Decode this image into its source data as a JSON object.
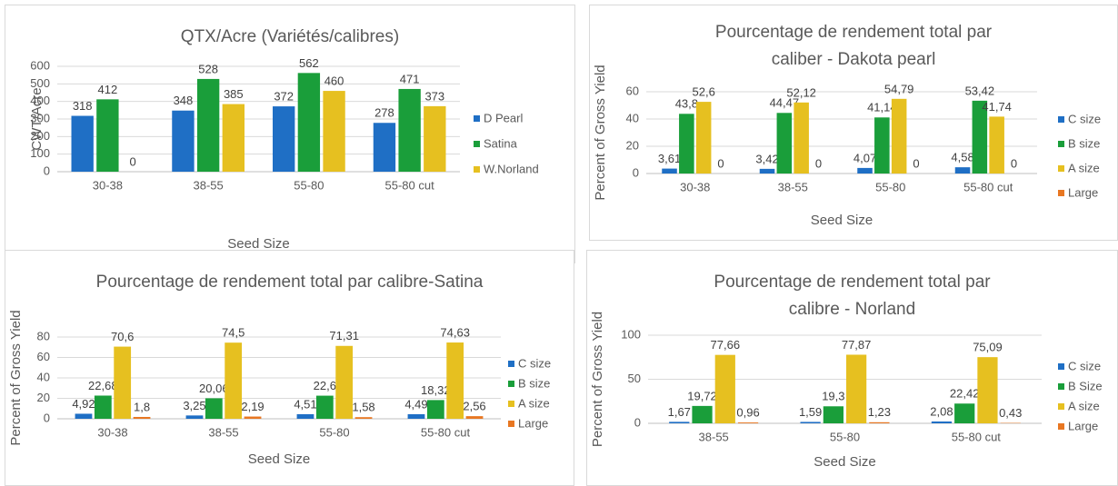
{
  "chart_data": [
    {
      "type": "bar",
      "title": "QTX/Acre (Variétés/calibres)",
      "x_label": "Seed Size",
      "y_label": "CWT/Acre",
      "categories": [
        "30-38",
        "38-55",
        "55-80",
        "55-80 cut"
      ],
      "series": [
        {
          "name": "D Pearl",
          "color": "#1f6fc5",
          "values": [
            318,
            348,
            372,
            278
          ]
        },
        {
          "name": "Satina",
          "color": "#1a9e3a",
          "values": [
            412,
            528,
            562,
            471
          ]
        },
        {
          "name": "W.Norland",
          "color": "#e6c020",
          "values": [
            0,
            385,
            460,
            373
          ]
        }
      ],
      "ylim": [
        0,
        600
      ],
      "yticks": [
        0,
        100,
        200,
        300,
        400,
        500,
        600
      ],
      "grid": true,
      "legend": "right"
    },
    {
      "type": "bar",
      "title": "Pourcentage de rendement total par caliber - Dakota pearl",
      "x_label": "Seed Size",
      "y_label": "Percent of Gross Yield",
      "categories": [
        "30-38",
        "38-55",
        "55-80",
        "55-80 cut"
      ],
      "series": [
        {
          "name": "C size",
          "color": "#1f6fc5",
          "values": [
            3.61,
            3.42,
            4.07,
            4.58
          ],
          "value_labels": [
            "3,61",
            "3,42",
            "4,07",
            "4,58"
          ]
        },
        {
          "name": "B size",
          "color": "#1a9e3a",
          "values": [
            43.8,
            44.47,
            41.14,
            53.42
          ],
          "value_labels": [
            "43,8",
            "44,47",
            "41,14",
            "53,42"
          ]
        },
        {
          "name": "A size",
          "color": "#e6c020",
          "values": [
            52.6,
            52.12,
            54.79,
            41.74
          ],
          "value_labels": [
            "52,6",
            "52,12",
            "54,79",
            "41,74"
          ]
        },
        {
          "name": "Large",
          "color": "#e87722",
          "values": [
            0,
            0,
            0,
            0
          ]
        }
      ],
      "ylim": [
        0,
        60
      ],
      "yticks": [
        0,
        20,
        40,
        60
      ],
      "grid": true,
      "legend": "right"
    },
    {
      "type": "bar",
      "title": "Pourcentage de rendement total par calibre-Satina",
      "x_label": "Seed Size",
      "y_label": "Percent of Gross Yield",
      "categories": [
        "30-38",
        "38-55",
        "55-80",
        "55-80 cut"
      ],
      "series": [
        {
          "name": "C size",
          "color": "#1f6fc5",
          "values": [
            4.92,
            3.25,
            4.51,
            4.49
          ],
          "value_labels": [
            "4,92",
            "3,25",
            "4,51",
            "4,49"
          ]
        },
        {
          "name": "B size",
          "color": "#1a9e3a",
          "values": [
            22.68,
            20.06,
            22.6,
            18.32
          ],
          "value_labels": [
            "22,68",
            "20,06",
            "22,6",
            "18,32"
          ]
        },
        {
          "name": "A size",
          "color": "#e6c020",
          "values": [
            70.6,
            74.5,
            71.31,
            74.63
          ],
          "value_labels": [
            "70,6",
            "74,5",
            "71,31",
            "74,63"
          ]
        },
        {
          "name": "Large",
          "color": "#e87722",
          "values": [
            1.8,
            2.19,
            1.58,
            2.56
          ],
          "value_labels": [
            "1,8",
            "2,19",
            "1,58",
            "2,56"
          ]
        }
      ],
      "ylim": [
        0,
        80
      ],
      "yticks": [
        0,
        20,
        40,
        60,
        80
      ],
      "grid": true,
      "legend": "right"
    },
    {
      "type": "bar",
      "title": "Pourcentage de rendement total par calibre - Norland",
      "x_label": "Seed Size",
      "y_label": "Percent of Gross Yield",
      "categories": [
        "38-55",
        "55-80",
        "55-80 cut"
      ],
      "series": [
        {
          "name": "C size",
          "color": "#1f6fc5",
          "values": [
            1.67,
            1.59,
            2.08
          ],
          "value_labels": [
            "1,67",
            "1,59",
            "2,08"
          ]
        },
        {
          "name": "B Size",
          "color": "#1a9e3a",
          "values": [
            19.72,
            19.3,
            22.42
          ],
          "value_labels": [
            "19,72",
            "19,3",
            "22,42"
          ]
        },
        {
          "name": "A size",
          "color": "#e6c020",
          "values": [
            77.66,
            77.87,
            75.09
          ],
          "value_labels": [
            "77,66",
            "77,87",
            "75,09"
          ]
        },
        {
          "name": "Large",
          "color": "#e87722",
          "values": [
            0.96,
            1.23,
            0.43
          ],
          "value_labels": [
            "0,96",
            "1,23",
            "0,43"
          ]
        }
      ],
      "ylim": [
        0,
        100
      ],
      "yticks": [
        0,
        50,
        100
      ],
      "grid": true,
      "legend": "right"
    }
  ]
}
